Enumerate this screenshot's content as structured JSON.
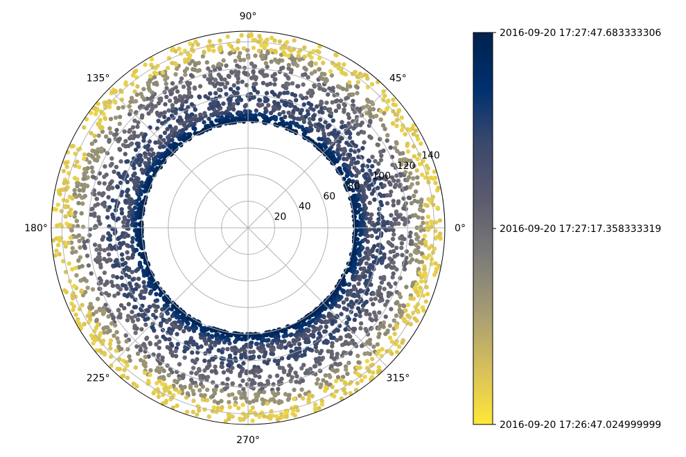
{
  "chart_data": {
    "type": "scatter",
    "projection": "polar",
    "grid": true,
    "angle_unit": "degrees",
    "angular_tick_labels": [
      "0°",
      "45°",
      "90°",
      "135°",
      "180°",
      "225°",
      "270°",
      "315°"
    ],
    "angular_ticks": [
      0,
      45,
      90,
      135,
      180,
      225,
      270,
      315
    ],
    "radial_ticks": [
      20,
      40,
      60,
      80,
      100,
      120,
      140
    ],
    "radial_tick_labels": [
      "20",
      "40",
      "60",
      "80",
      "100",
      "120",
      "140"
    ],
    "rlim": [
      0,
      148
    ],
    "radial_label_angle_deg": 22.5,
    "series": [
      {
        "r_min": 80,
        "r_max": 94,
        "color_position": 1.0,
        "count": 1400
      },
      {
        "r_min": 94,
        "r_max": 106,
        "color_position": 0.72,
        "count": 650
      },
      {
        "r_min": 106,
        "r_max": 112,
        "color_position": 0.55,
        "count": 250
      },
      {
        "r_min": 112,
        "r_max": 124,
        "color_position": 0.52,
        "count": 550
      },
      {
        "r_min": 124,
        "r_max": 134,
        "color_position": 0.34,
        "count": 520
      },
      {
        "r_min": 133,
        "r_max": 147,
        "color_position": 0.1,
        "count": 650
      }
    ],
    "colorbar": {
      "colormap": "cividis_r",
      "colors": [
        "#fee838",
        "#d6bf5c",
        "#a59c74",
        "#7c7b78",
        "#5b5b6e",
        "#3b496c",
        "#00306f",
        "#00224e"
      ],
      "tick_labels": [
        "2016-09-20 17:27:47.683333306",
        "2016-09-20 17:27:17.358333319",
        "2016-09-20 17:26:47.024999999"
      ],
      "tick_positions": [
        1.0,
        0.5,
        0.0
      ]
    }
  }
}
